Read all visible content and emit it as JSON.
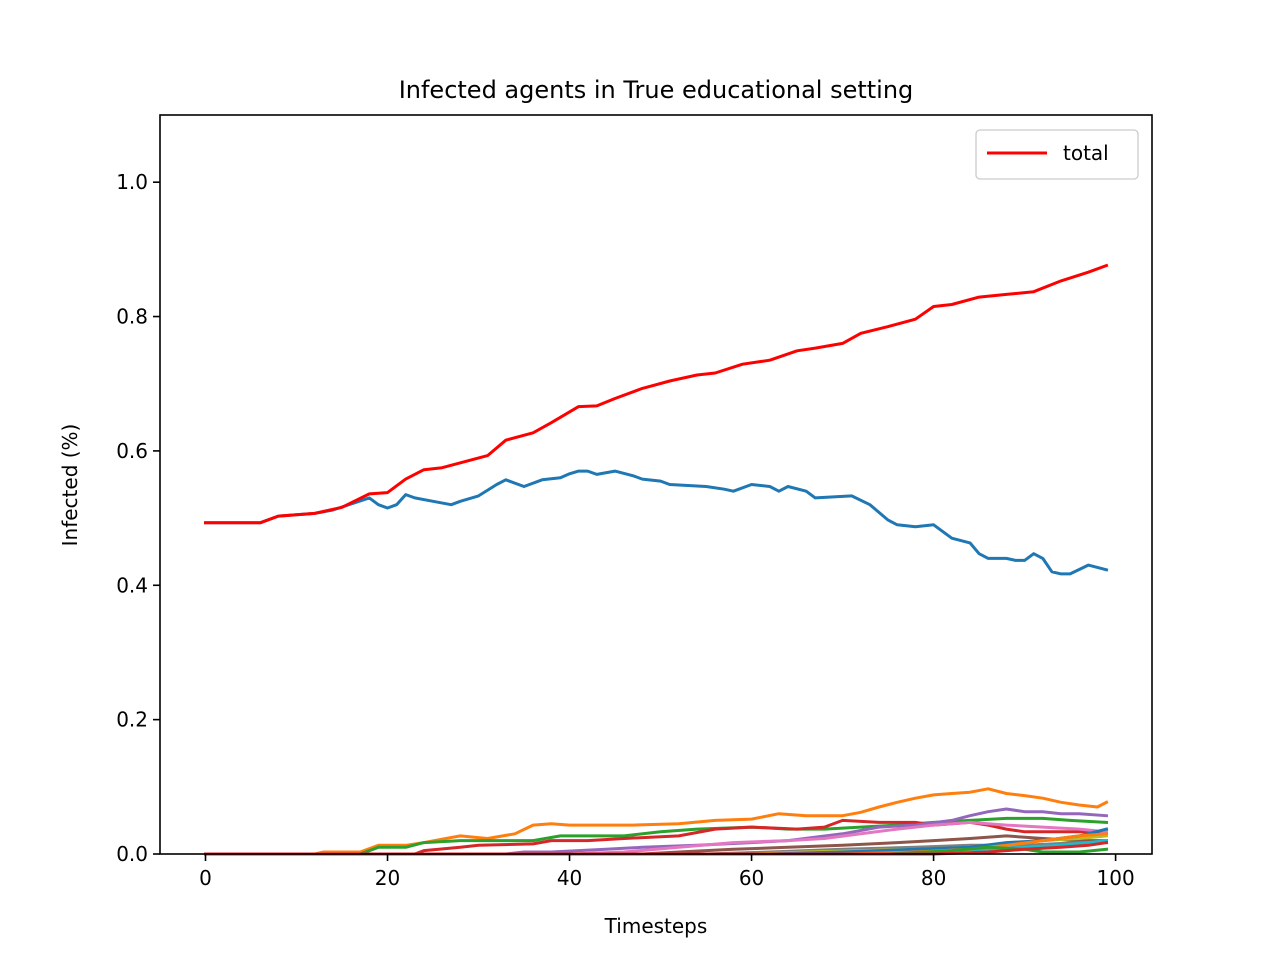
{
  "chart_data": {
    "type": "line",
    "title": "Infected agents in True educational setting",
    "xlabel": "Timesteps",
    "ylabel": "Infected (%)",
    "xlim": [
      -5,
      104
    ],
    "ylim": [
      0.0,
      1.1
    ],
    "xticks": [
      0,
      20,
      40,
      60,
      80,
      100
    ],
    "xtick_labels": [
      "0",
      "20",
      "40",
      "60",
      "80",
      "100"
    ],
    "yticks": [
      0.0,
      0.2,
      0.4,
      0.6,
      0.8,
      1.0
    ],
    "ytick_labels": [
      "0.0",
      "0.2",
      "0.4",
      "0.6",
      "0.8",
      "1.0"
    ],
    "grid": false,
    "legend_position": "top-right",
    "legend_entries": [
      "total"
    ],
    "series": [
      {
        "name": "total",
        "color": "#ff0000",
        "in_legend": true,
        "points": [
          [
            0,
            0.493
          ],
          [
            6,
            0.493
          ],
          [
            8,
            0.503
          ],
          [
            12,
            0.507
          ],
          [
            15,
            0.516
          ],
          [
            18,
            0.536
          ],
          [
            20,
            0.538
          ],
          [
            22,
            0.558
          ],
          [
            24,
            0.572
          ],
          [
            26,
            0.575
          ],
          [
            31,
            0.593
          ],
          [
            33,
            0.616
          ],
          [
            36,
            0.627
          ],
          [
            38,
            0.642
          ],
          [
            41,
            0.666
          ],
          [
            43,
            0.667
          ],
          [
            45,
            0.678
          ],
          [
            48,
            0.693
          ],
          [
            51,
            0.704
          ],
          [
            54,
            0.713
          ],
          [
            56,
            0.716
          ],
          [
            59,
            0.729
          ],
          [
            62,
            0.735
          ],
          [
            65,
            0.749
          ],
          [
            67,
            0.753
          ],
          [
            70,
            0.76
          ],
          [
            72,
            0.775
          ],
          [
            75,
            0.785
          ],
          [
            78,
            0.796
          ],
          [
            80,
            0.815
          ],
          [
            82,
            0.818
          ],
          [
            85,
            0.829
          ],
          [
            88,
            0.833
          ],
          [
            91,
            0.837
          ],
          [
            94,
            0.853
          ],
          [
            97,
            0.866
          ],
          [
            99,
            0.876
          ]
        ]
      },
      {
        "name": "",
        "color": "#1f77b4",
        "in_legend": false,
        "points": [
          [
            0,
            0.493
          ],
          [
            6,
            0.493
          ],
          [
            8,
            0.503
          ],
          [
            12,
            0.507
          ],
          [
            14,
            0.512
          ],
          [
            18,
            0.53
          ],
          [
            19,
            0.52
          ],
          [
            20,
            0.515
          ],
          [
            21,
            0.52
          ],
          [
            22,
            0.535
          ],
          [
            23,
            0.53
          ],
          [
            25,
            0.525
          ],
          [
            27,
            0.52
          ],
          [
            28,
            0.525
          ],
          [
            30,
            0.533
          ],
          [
            32,
            0.55
          ],
          [
            33,
            0.557
          ],
          [
            35,
            0.547
          ],
          [
            37,
            0.557
          ],
          [
            39,
            0.56
          ],
          [
            40,
            0.566
          ],
          [
            41,
            0.57
          ],
          [
            42,
            0.57
          ],
          [
            43,
            0.565
          ],
          [
            45,
            0.57
          ],
          [
            47,
            0.563
          ],
          [
            48,
            0.558
          ],
          [
            50,
            0.555
          ],
          [
            51,
            0.55
          ],
          [
            55,
            0.547
          ],
          [
            57,
            0.543
          ],
          [
            58,
            0.54
          ],
          [
            60,
            0.55
          ],
          [
            62,
            0.547
          ],
          [
            63,
            0.54
          ],
          [
            64,
            0.547
          ],
          [
            66,
            0.54
          ],
          [
            67,
            0.53
          ],
          [
            71,
            0.533
          ],
          [
            73,
            0.52
          ],
          [
            75,
            0.497
          ],
          [
            76,
            0.49
          ],
          [
            78,
            0.487
          ],
          [
            80,
            0.49
          ],
          [
            82,
            0.47
          ],
          [
            84,
            0.463
          ],
          [
            85,
            0.447
          ],
          [
            86,
            0.44
          ],
          [
            88,
            0.44
          ],
          [
            89,
            0.437
          ],
          [
            90,
            0.437
          ],
          [
            91,
            0.447
          ],
          [
            92,
            0.44
          ],
          [
            93,
            0.42
          ],
          [
            94,
            0.417
          ],
          [
            95,
            0.417
          ],
          [
            97,
            0.43
          ],
          [
            99,
            0.423
          ]
        ]
      },
      {
        "name": "",
        "color": "#ff7f0e",
        "in_legend": false,
        "points": [
          [
            0,
            0
          ],
          [
            12,
            0
          ],
          [
            13,
            0.003
          ],
          [
            17,
            0.003
          ],
          [
            19,
            0.013
          ],
          [
            22,
            0.013
          ],
          [
            24,
            0.017
          ],
          [
            26,
            0.022
          ],
          [
            28,
            0.027
          ],
          [
            31,
            0.023
          ],
          [
            34,
            0.03
          ],
          [
            36,
            0.043
          ],
          [
            38,
            0.045
          ],
          [
            40,
            0.043
          ],
          [
            43,
            0.043
          ],
          [
            47,
            0.043
          ],
          [
            52,
            0.045
          ],
          [
            56,
            0.05
          ],
          [
            60,
            0.052
          ],
          [
            63,
            0.06
          ],
          [
            66,
            0.057
          ],
          [
            70,
            0.057
          ],
          [
            72,
            0.062
          ],
          [
            74,
            0.07
          ],
          [
            76,
            0.077
          ],
          [
            78,
            0.083
          ],
          [
            80,
            0.088
          ],
          [
            82,
            0.09
          ],
          [
            84,
            0.092
          ],
          [
            86,
            0.097
          ],
          [
            88,
            0.09
          ],
          [
            90,
            0.087
          ],
          [
            92,
            0.083
          ],
          [
            94,
            0.077
          ],
          [
            96,
            0.073
          ],
          [
            98,
            0.07
          ],
          [
            99,
            0.077
          ]
        ]
      },
      {
        "name": "",
        "color": "#2ca02c",
        "in_legend": false,
        "points": [
          [
            0,
            0
          ],
          [
            17,
            0
          ],
          [
            19,
            0.01
          ],
          [
            22,
            0.01
          ],
          [
            24,
            0.017
          ],
          [
            28,
            0.02
          ],
          [
            36,
            0.02
          ],
          [
            39,
            0.027
          ],
          [
            46,
            0.027
          ],
          [
            50,
            0.033
          ],
          [
            54,
            0.037
          ],
          [
            60,
            0.04
          ],
          [
            64,
            0.037
          ],
          [
            68,
            0.037
          ],
          [
            72,
            0.04
          ],
          [
            76,
            0.043
          ],
          [
            80,
            0.047
          ],
          [
            84,
            0.05
          ],
          [
            88,
            0.053
          ],
          [
            92,
            0.053
          ],
          [
            95,
            0.05
          ],
          [
            99,
            0.047
          ]
        ]
      },
      {
        "name": "",
        "color": "#d62728",
        "in_legend": false,
        "points": [
          [
            0,
            0
          ],
          [
            23,
            0
          ],
          [
            24,
            0.005
          ],
          [
            28,
            0.01
          ],
          [
            30,
            0.013
          ],
          [
            36,
            0.015
          ],
          [
            38,
            0.02
          ],
          [
            42,
            0.02
          ],
          [
            46,
            0.023
          ],
          [
            52,
            0.027
          ],
          [
            56,
            0.037
          ],
          [
            60,
            0.04
          ],
          [
            65,
            0.037
          ],
          [
            68,
            0.04
          ],
          [
            70,
            0.05
          ],
          [
            74,
            0.047
          ],
          [
            78,
            0.047
          ],
          [
            80,
            0.043
          ],
          [
            84,
            0.047
          ],
          [
            86,
            0.043
          ],
          [
            88,
            0.037
          ],
          [
            90,
            0.033
          ],
          [
            92,
            0.033
          ],
          [
            96,
            0.033
          ],
          [
            99,
            0.033
          ]
        ]
      },
      {
        "name": "",
        "color": "#9467bd",
        "in_legend": false,
        "points": [
          [
            0,
            0
          ],
          [
            33,
            0
          ],
          [
            35,
            0.003
          ],
          [
            38,
            0.003
          ],
          [
            44,
            0.007
          ],
          [
            48,
            0.01
          ],
          [
            54,
            0.013
          ],
          [
            60,
            0.017
          ],
          [
            64,
            0.02
          ],
          [
            70,
            0.03
          ],
          [
            74,
            0.04
          ],
          [
            78,
            0.043
          ],
          [
            82,
            0.05
          ],
          [
            84,
            0.057
          ],
          [
            86,
            0.063
          ],
          [
            88,
            0.067
          ],
          [
            90,
            0.063
          ],
          [
            92,
            0.063
          ],
          [
            94,
            0.06
          ],
          [
            96,
            0.06
          ],
          [
            99,
            0.057
          ]
        ]
      },
      {
        "name": "",
        "color": "#8c564b",
        "in_legend": false,
        "points": [
          [
            0,
            0
          ],
          [
            48,
            0
          ],
          [
            52,
            0.003
          ],
          [
            58,
            0.007
          ],
          [
            64,
            0.01
          ],
          [
            70,
            0.013
          ],
          [
            76,
            0.017
          ],
          [
            80,
            0.02
          ],
          [
            84,
            0.023
          ],
          [
            88,
            0.027
          ],
          [
            92,
            0.023
          ],
          [
            96,
            0.02
          ],
          [
            99,
            0.02
          ]
        ]
      },
      {
        "name": "",
        "color": "#e377c2",
        "in_legend": false,
        "points": [
          [
            0,
            0
          ],
          [
            40,
            0
          ],
          [
            46,
            0.003
          ],
          [
            52,
            0.01
          ],
          [
            58,
            0.017
          ],
          [
            64,
            0.02
          ],
          [
            68,
            0.023
          ],
          [
            72,
            0.03
          ],
          [
            76,
            0.037
          ],
          [
            80,
            0.043
          ],
          [
            84,
            0.047
          ],
          [
            88,
            0.043
          ],
          [
            92,
            0.04
          ],
          [
            96,
            0.037
          ],
          [
            99,
            0.033
          ]
        ]
      },
      {
        "name": "",
        "color": "#7f7f7f",
        "in_legend": false,
        "points": [
          [
            0,
            0
          ],
          [
            55,
            0
          ],
          [
            62,
            0.003
          ],
          [
            70,
            0.007
          ],
          [
            78,
            0.01
          ],
          [
            84,
            0.013
          ],
          [
            90,
            0.013
          ],
          [
            96,
            0.017
          ],
          [
            99,
            0.017
          ]
        ]
      },
      {
        "name": "",
        "color": "#bcbd22",
        "in_legend": false,
        "points": [
          [
            0,
            0
          ],
          [
            60,
            0
          ],
          [
            66,
            0.003
          ],
          [
            72,
            0.005
          ],
          [
            78,
            0.007
          ],
          [
            84,
            0.01
          ],
          [
            88,
            0.013
          ],
          [
            92,
            0.02
          ],
          [
            96,
            0.023
          ],
          [
            99,
            0.027
          ]
        ]
      },
      {
        "name": "",
        "color": "#17becf",
        "in_legend": false,
        "points": [
          [
            0,
            0
          ],
          [
            65,
            0
          ],
          [
            72,
            0.002
          ],
          [
            80,
            0.005
          ],
          [
            86,
            0.007
          ],
          [
            90,
            0.01
          ],
          [
            94,
            0.013
          ],
          [
            97,
            0.017
          ],
          [
            99,
            0.02
          ]
        ]
      },
      {
        "name": "",
        "color": "#1f77b4",
        "in_legend": false,
        "points": [
          [
            0,
            0
          ],
          [
            62,
            0
          ],
          [
            70,
            0.003
          ],
          [
            78,
            0.007
          ],
          [
            84,
            0.01
          ],
          [
            88,
            0.017
          ],
          [
            92,
            0.02
          ],
          [
            96,
            0.027
          ],
          [
            99,
            0.037
          ]
        ]
      },
      {
        "name": "",
        "color": "#ff7f0e",
        "in_legend": false,
        "points": [
          [
            0,
            0
          ],
          [
            70,
            0
          ],
          [
            78,
            0.003
          ],
          [
            84,
            0.007
          ],
          [
            88,
            0.013
          ],
          [
            92,
            0.02
          ],
          [
            96,
            0.027
          ],
          [
            99,
            0.03
          ]
        ]
      },
      {
        "name": "",
        "color": "#2ca02c",
        "in_legend": false,
        "points": [
          [
            0,
            0
          ],
          [
            75,
            0
          ],
          [
            82,
            0.005
          ],
          [
            86,
            0.01
          ],
          [
            90,
            0.007
          ],
          [
            92,
            0.003
          ],
          [
            96,
            0.003
          ],
          [
            99,
            0.007
          ]
        ]
      },
      {
        "name": "",
        "color": "#d62728",
        "in_legend": false,
        "points": [
          [
            0,
            0
          ],
          [
            80,
            0
          ],
          [
            86,
            0.003
          ],
          [
            90,
            0.007
          ],
          [
            94,
            0.01
          ],
          [
            97,
            0.013
          ],
          [
            99,
            0.017
          ]
        ]
      }
    ]
  }
}
